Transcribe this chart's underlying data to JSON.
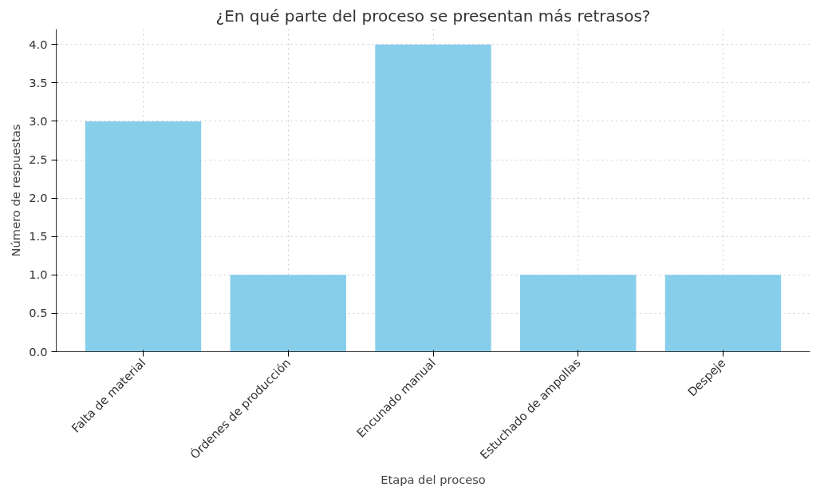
{
  "chart_data": {
    "type": "bar",
    "title": "¿En qué parte del proceso se presentan más retrasos?",
    "xlabel": "Etapa del proceso",
    "ylabel": "Número de respuestas",
    "categories": [
      "Falta de material",
      "Órdenes de producción",
      "Encunado manual",
      "Estuchado de ampollas",
      "Despeje"
    ],
    "values": [
      3,
      1,
      4,
      1,
      1
    ],
    "color": "#87ceeb",
    "ylim": [
      0,
      4.2
    ],
    "yticks": [
      {
        "value": 0,
        "label": "0.0"
      },
      {
        "value": 0.5,
        "label": "0.5"
      },
      {
        "value": 1,
        "label": "1.0"
      },
      {
        "value": 1.5,
        "label": "1.5"
      },
      {
        "value": 2,
        "label": "2.0"
      },
      {
        "value": 2.5,
        "label": "2.5"
      },
      {
        "value": 3,
        "label": "3.0"
      },
      {
        "value": 3.5,
        "label": "3.5"
      },
      {
        "value": 4,
        "label": "4.0"
      }
    ],
    "grid": true
  }
}
